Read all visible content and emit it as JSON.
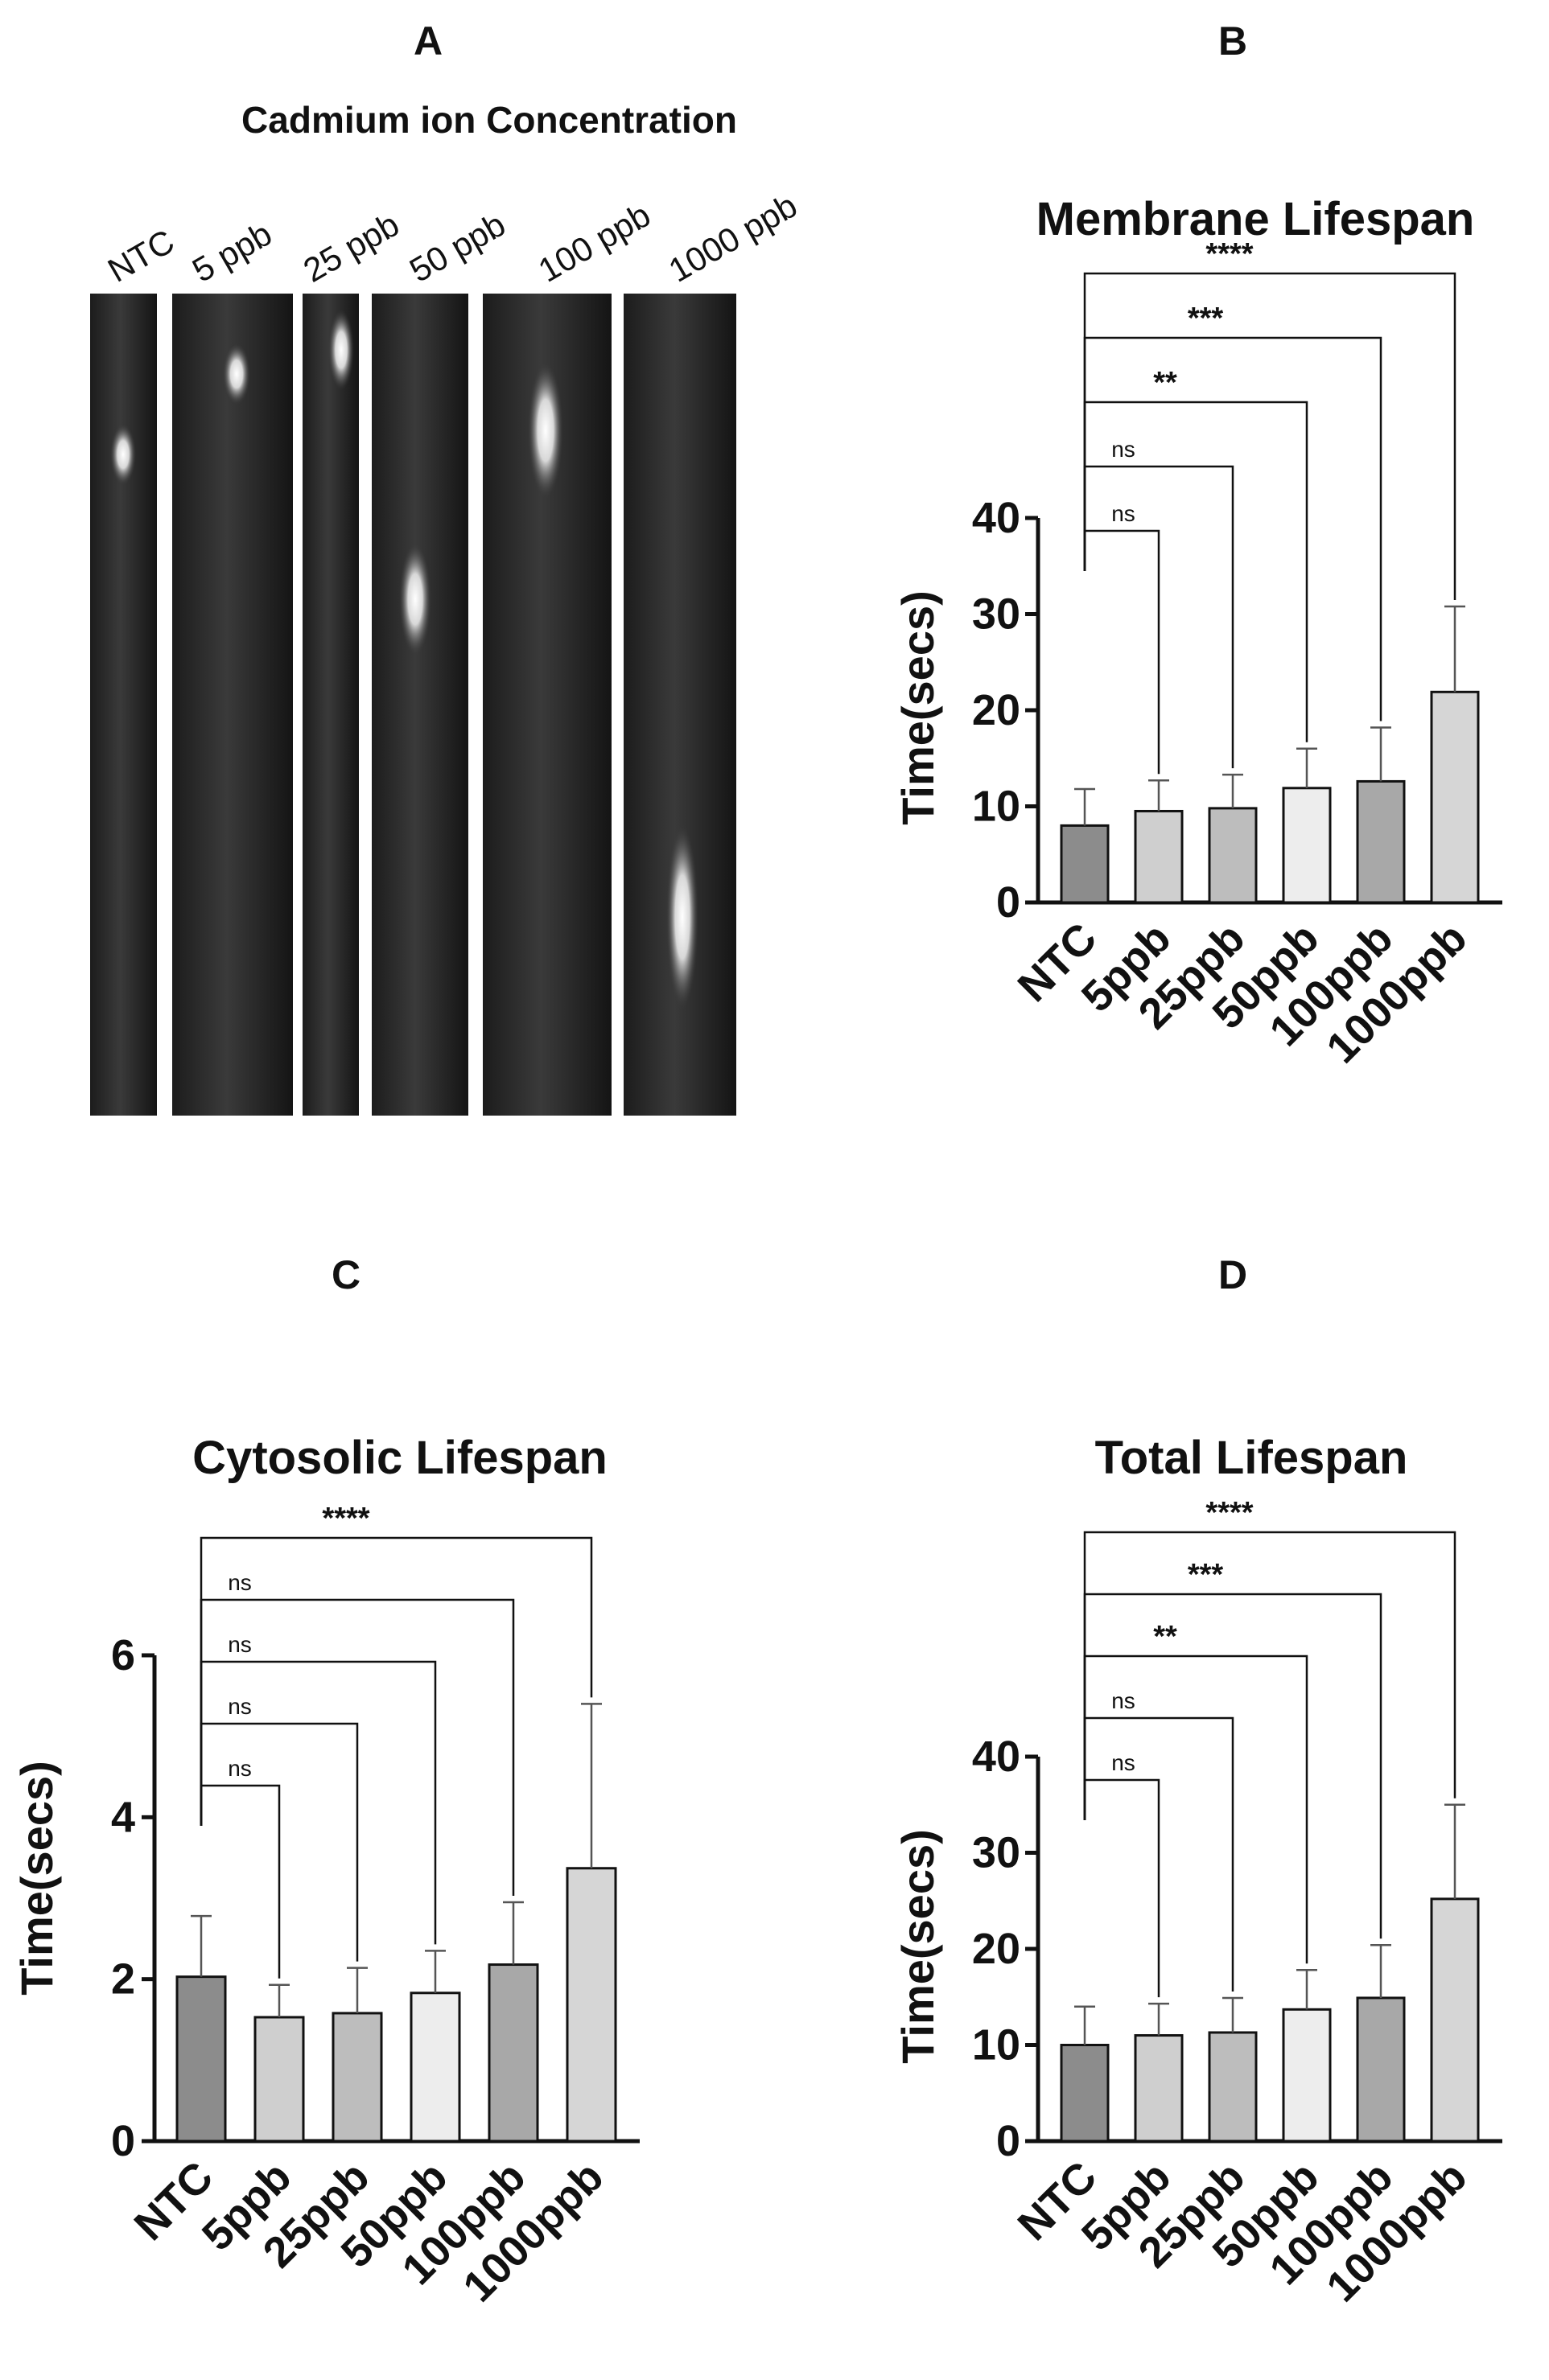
{
  "panel_letters": [
    "A",
    "B",
    "C",
    "D"
  ],
  "panel_a": {
    "title": "Cadmium ion Concentration",
    "lanes": [
      "NTC",
      "5 ppb",
      "25 ppb",
      "50 ppb",
      "100 ppb",
      "1000 ppb"
    ]
  },
  "colors": {
    "bars": [
      "#8c8c8c",
      "#cfcfcf",
      "#bdbdbd",
      "#ededed",
      "#a8a8a8",
      "#d6d6d6"
    ],
    "axis": "#111111"
  },
  "chart_data": [
    {
      "type": "bar",
      "panel": "B",
      "title": "Membrane Lifespan",
      "xlabel": "",
      "ylabel": "Time(secs)",
      "categories": [
        "NTC",
        "5ppb",
        "25ppb",
        "50ppb",
        "100ppb",
        "1000ppb"
      ],
      "values": [
        8.0,
        9.5,
        9.8,
        11.9,
        12.6,
        21.9
      ],
      "errors": [
        3.8,
        3.2,
        3.5,
        4.1,
        5.6,
        8.9
      ],
      "ylim": [
        0,
        40
      ],
      "yticks": [
        "0",
        "10",
        "20",
        "30",
        "40"
      ],
      "comparisons": [
        {
          "from": "NTC",
          "to": "5ppb",
          "label": "ns"
        },
        {
          "from": "NTC",
          "to": "25ppb",
          "label": "ns"
        },
        {
          "from": "NTC",
          "to": "50ppb",
          "label": "**"
        },
        {
          "from": "NTC",
          "to": "100ppb",
          "label": "***"
        },
        {
          "from": "NTC",
          "to": "1000ppb",
          "label": "****"
        }
      ]
    },
    {
      "type": "bar",
      "panel": "C",
      "title": "Cytosolic Lifespan",
      "xlabel": "",
      "ylabel": "Time(secs)",
      "categories": [
        "NTC",
        "5ppb",
        "25ppb",
        "50ppb",
        "100ppb",
        "1000ppb"
      ],
      "values": [
        2.03,
        1.53,
        1.58,
        1.83,
        2.18,
        3.37
      ],
      "errors": [
        0.75,
        0.4,
        0.56,
        0.52,
        0.77,
        2.03
      ],
      "ylim": [
        0,
        6
      ],
      "yticks": [
        "0",
        "2",
        "4",
        "6"
      ],
      "comparisons": [
        {
          "from": "NTC",
          "to": "5ppb",
          "label": "ns"
        },
        {
          "from": "NTC",
          "to": "25ppb",
          "label": "ns"
        },
        {
          "from": "NTC",
          "to": "50ppb",
          "label": "ns"
        },
        {
          "from": "NTC",
          "to": "100ppb",
          "label": "ns"
        },
        {
          "from": "NTC",
          "to": "1000ppb",
          "label": "****"
        }
      ]
    },
    {
      "type": "bar",
      "panel": "D",
      "title": "Total Lifespan",
      "xlabel": "",
      "ylabel": "Time(secs)",
      "categories": [
        "NTC",
        "5ppb",
        "25ppb",
        "50ppb",
        "100ppb",
        "1000ppb"
      ],
      "values": [
        10.0,
        11.0,
        11.3,
        13.7,
        14.9,
        25.2
      ],
      "errors": [
        4.0,
        3.3,
        3.6,
        4.1,
        5.5,
        9.8
      ],
      "ylim": [
        0,
        40
      ],
      "yticks": [
        "0",
        "10",
        "20",
        "30",
        "40"
      ],
      "comparisons": [
        {
          "from": "NTC",
          "to": "5ppb",
          "label": "ns"
        },
        {
          "from": "NTC",
          "to": "25ppb",
          "label": "ns"
        },
        {
          "from": "NTC",
          "to": "50ppb",
          "label": "**"
        },
        {
          "from": "NTC",
          "to": "100ppb",
          "label": "***"
        },
        {
          "from": "NTC",
          "to": "1000ppb",
          "label": "****"
        }
      ]
    }
  ]
}
